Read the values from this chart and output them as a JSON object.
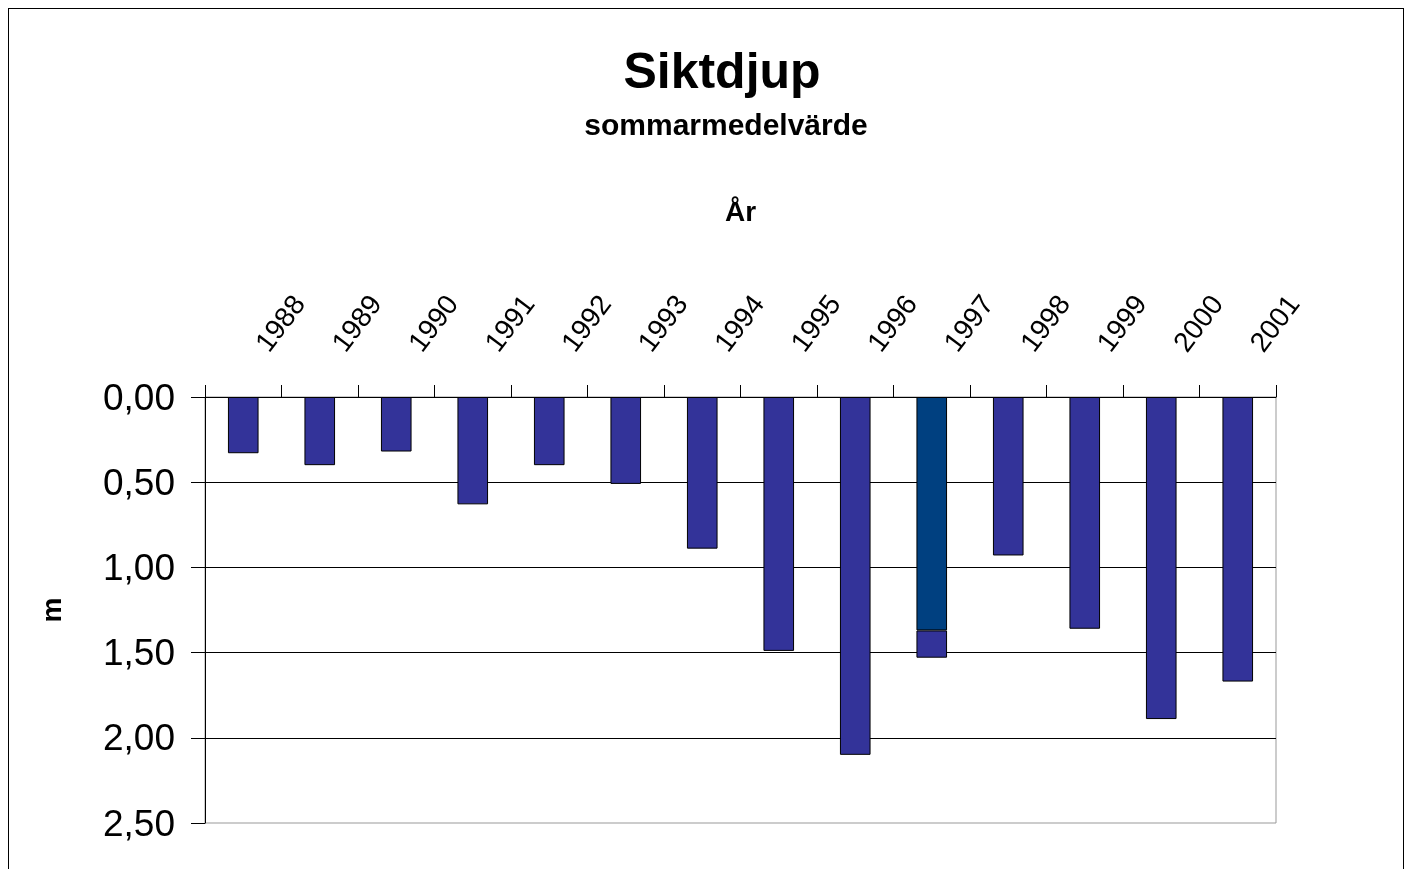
{
  "chart_data": {
    "type": "bar",
    "title": "Siktdjup",
    "subtitle": "sommarmedelvärde",
    "xlabel": "År",
    "ylabel": "m",
    "categories": [
      "1988",
      "1989",
      "1990",
      "1991",
      "1992",
      "1993",
      "1994",
      "1995",
      "1996",
      "1997",
      "1998",
      "1999",
      "2000",
      "2001"
    ],
    "stacked": true,
    "series": [
      {
        "color": "#004080",
        "values": [
          null,
          null,
          null,
          null,
          null,
          null,
          null,
          null,
          null,
          1.37,
          null,
          null,
          null,
          null
        ]
      },
      {
        "color": "#333399",
        "values": [
          0.33,
          0.4,
          0.32,
          0.63,
          0.4,
          0.51,
          0.89,
          1.49,
          2.1,
          0.16,
          0.93,
          1.36,
          1.89,
          1.67
        ]
      }
    ],
    "ylim": [
      2.5,
      0
    ],
    "yticks": [
      {
        "value": 0,
        "label": "0,00"
      },
      {
        "value": 0.5,
        "label": "0,50"
      },
      {
        "value": 1,
        "label": "1,00"
      },
      {
        "value": 1.5,
        "label": "1,50"
      },
      {
        "value": 2,
        "label": "2,00"
      },
      {
        "value": 2.5,
        "label": "2,50"
      }
    ],
    "grid": "y"
  }
}
